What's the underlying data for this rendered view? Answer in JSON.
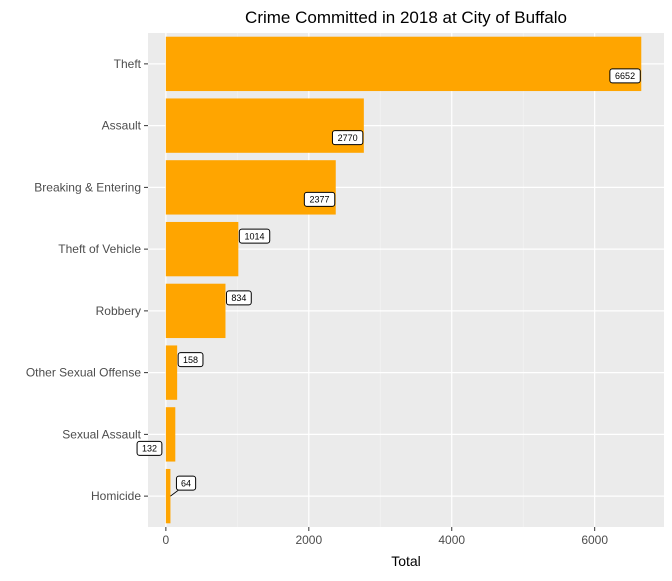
{
  "chart_data": {
    "type": "bar",
    "orientation": "horizontal",
    "title": "Crime Committed in 2018 at City of Buffalo",
    "xlabel": "Total",
    "ylabel": "",
    "categories": [
      "Theft",
      "Assault",
      "Breaking & Entering",
      "Theft of Vehicle",
      "Robbery",
      "Other Sexual Offense",
      "Sexual Assault",
      "Homicide"
    ],
    "values": [
      6652,
      2770,
      2377,
      1014,
      834,
      158,
      132,
      64
    ],
    "data_labels": [
      "6652",
      "2770",
      "2377",
      "1014",
      "834",
      "158",
      "132",
      "64"
    ],
    "xlim": [
      -250,
      6970
    ],
    "xticks": [
      0,
      2000,
      4000,
      6000
    ],
    "xtick_labels": [
      "0",
      "2000",
      "4000",
      "6000"
    ],
    "grid": true,
    "legend": "none",
    "colors": {
      "bar": "#FFA500",
      "panel_background": "#EBEBEB",
      "grid_major": "#FFFFFF",
      "grid_minor": "#F5F5F5",
      "label_fill": "#FFFFFF",
      "label_border": "#000000"
    }
  }
}
